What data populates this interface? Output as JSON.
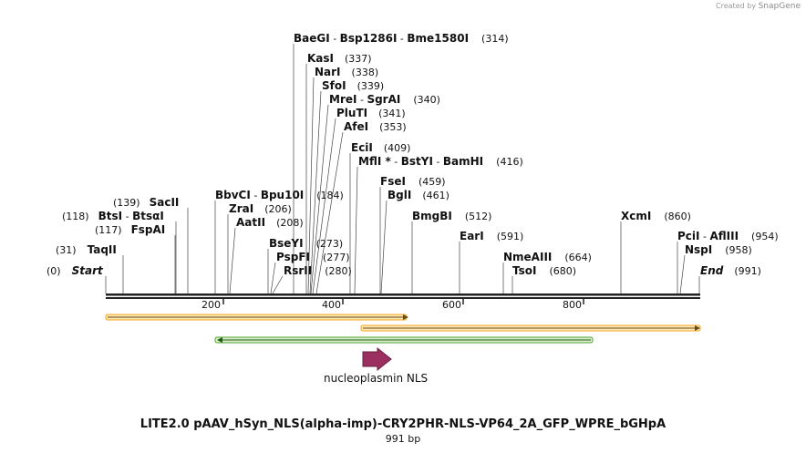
{
  "branding": {
    "created_by": "Created by",
    "app": "SnapGene"
  },
  "title": "LITE2.0 pAAV_hSyn_NLS(alpha-imp)-CRY2PHR-NLS-VP64_2A_GFP_WPRE_bGHpA",
  "length_label": "991 bp",
  "ruler": {
    "ticks": [
      "200",
      "400",
      "600",
      "800"
    ]
  },
  "labels": [
    {
      "name": "BaeGI",
      "sep1": " - ",
      "name2": "Bsp1286I",
      "sep2": " - ",
      "name3": "Bme1580I",
      "pos": "(314)"
    },
    {
      "name": "KasI",
      "pos": "(337)"
    },
    {
      "name": "NarI",
      "pos": "(338)"
    },
    {
      "name": "SfoI",
      "pos": "(339)"
    },
    {
      "name": "MreI",
      "sep1": " - ",
      "name2": "SgrAI",
      "pos": "(340)"
    },
    {
      "name": "PluTI",
      "pos": "(341)"
    },
    {
      "name": "AfeI",
      "pos": "(353)"
    },
    {
      "name": "EciI",
      "pos": "(409)"
    },
    {
      "name": "MflI",
      "star": " *",
      "sep1": " - ",
      "name2": "BstYI",
      "sep2": " - ",
      "name3": "BamHI",
      "pos": "(416)"
    },
    {
      "name": "FseI",
      "pos": "(459)"
    },
    {
      "name": "BglI",
      "pos": "(461)"
    },
    {
      "name": "BbvCI",
      "sep1": " - ",
      "name2": "Bpu10I",
      "pos": "(184)"
    },
    {
      "name": "ZraI",
      "pos": "(206)"
    },
    {
      "name": "AatII",
      "pos": "(208)"
    },
    {
      "name": "BseYI",
      "pos": "(273)"
    },
    {
      "name": "PspFI",
      "pos": "(277)"
    },
    {
      "name": "RsrII",
      "pos": "(280)"
    },
    {
      "name": "SacII",
      "pos": "(139)",
      "pos_first": true
    },
    {
      "name": "BtsI",
      "sep1": " - ",
      "name2": "BtsαI",
      "pos": "(118)",
      "pos_first": true
    },
    {
      "name": "FspAI",
      "pos": "(117)",
      "pos_first": true
    },
    {
      "name": "TaqII",
      "pos": "(31)",
      "pos_first": true
    },
    {
      "name": "BmgBI",
      "pos": "(512)"
    },
    {
      "name": "EarI",
      "pos": "(591)"
    },
    {
      "name": "NmeAIII",
      "pos": "(664)"
    },
    {
      "name": "TsoI",
      "pos": "(680)"
    },
    {
      "name": "XcmI",
      "pos": "(860)"
    },
    {
      "name": "PciI",
      "sep1": " - ",
      "name2": "AflIII",
      "pos": "(954)"
    },
    {
      "name": "NspI",
      "pos": "(958)"
    }
  ],
  "start": {
    "label": "Start",
    "pos": "(0)"
  },
  "end": {
    "label": "End",
    "pos": "(991)"
  },
  "features": [
    {
      "label": "",
      "color": "#f5a623"
    },
    {
      "label": "",
      "color": "#f5a623"
    },
    {
      "label": "",
      "color": "#4aa52e"
    },
    {
      "label": "nucleoplasmin NLS",
      "color": "#9b2f5f"
    }
  ]
}
